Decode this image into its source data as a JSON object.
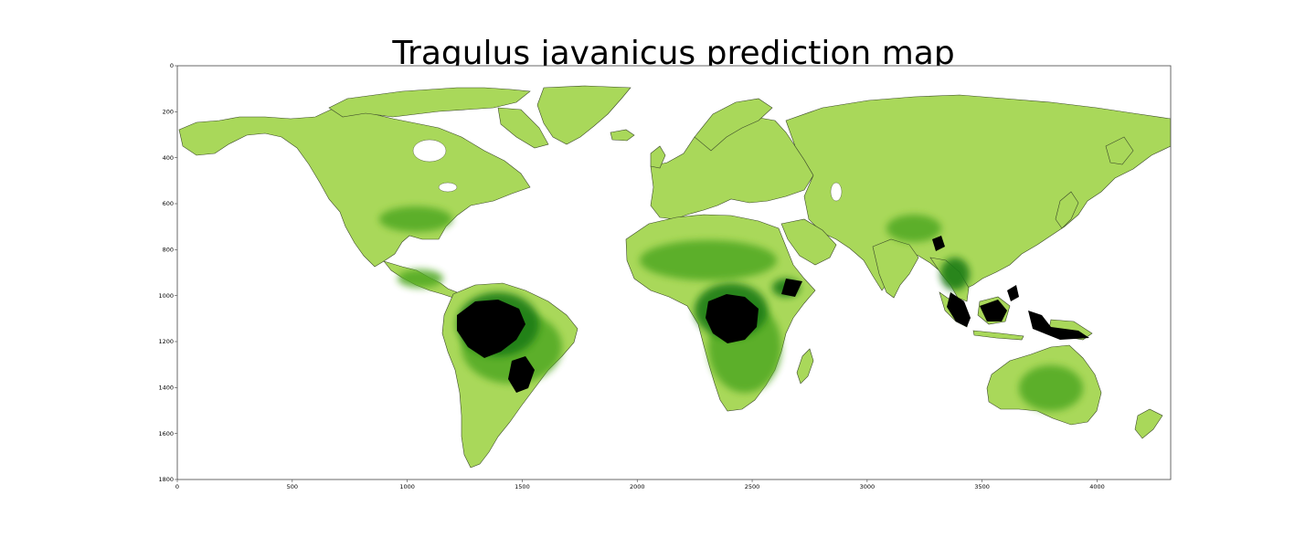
{
  "title": "Tragulus javanicus prediction map",
  "axes": {
    "x_ticks": [
      {
        "value": 0,
        "label": "0"
      },
      {
        "value": 500,
        "label": "500"
      },
      {
        "value": 1000,
        "label": "1000"
      },
      {
        "value": 1500,
        "label": "1500"
      },
      {
        "value": 2000,
        "label": "2000"
      },
      {
        "value": 2500,
        "label": "2500"
      },
      {
        "value": 3000,
        "label": "3000"
      },
      {
        "value": 3500,
        "label": "3500"
      },
      {
        "value": 4000,
        "label": "4000"
      }
    ],
    "y_ticks": [
      {
        "value": 0,
        "label": "0"
      },
      {
        "value": 200,
        "label": "200"
      },
      {
        "value": 400,
        "label": "400"
      },
      {
        "value": 600,
        "label": "600"
      },
      {
        "value": 800,
        "label": "800"
      },
      {
        "value": 1000,
        "label": "1000"
      },
      {
        "value": 1200,
        "label": "1200"
      },
      {
        "value": 1400,
        "label": "1400"
      },
      {
        "value": 1600,
        "label": "1600"
      },
      {
        "value": 1800,
        "label": "1800"
      }
    ],
    "x_range": [
      0,
      4320
    ],
    "y_range": [
      1800,
      0
    ]
  },
  "colors": {
    "low": "#a9d85a",
    "mid": "#4fa820",
    "high": "#1f7d12",
    "max": "#000000",
    "background": "#ffffff"
  }
}
